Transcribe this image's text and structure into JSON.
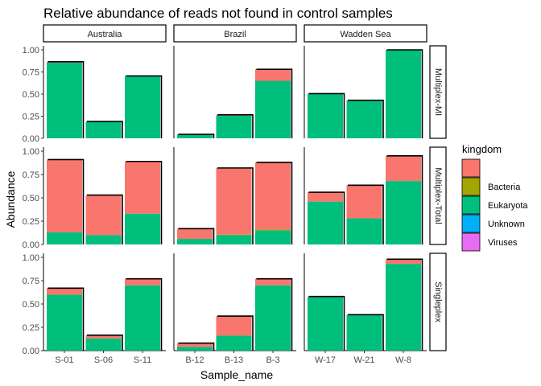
{
  "chart_data": {
    "type": "bar",
    "stacked": true,
    "title": "Relative abundance of reads not found in control samples",
    "xlabel": "Sample_name",
    "ylabel": "Abundance",
    "ylim": [
      0,
      1.0
    ],
    "yticks": [
      "0.00",
      "0.25",
      "0.50",
      "0.75",
      "1.00"
    ],
    "column_facets": [
      "Australia",
      "Brazil",
      "Wadden Sea"
    ],
    "row_facets": [
      "Multiplex-MI",
      "Multiplex-Total",
      "Singleplex"
    ],
    "categories": [
      [
        "S-01",
        "S-06",
        "S-11"
      ],
      [
        "B-12",
        "B-13",
        "B-3"
      ],
      [
        "W-17",
        "W-21",
        "W-8"
      ]
    ],
    "legend": {
      "title": "kingdom",
      "position": "right",
      "entries": [
        {
          "name": "",
          "color": "#F8766D"
        },
        {
          "name": "Bacteria",
          "color": "#A3A500"
        },
        {
          "name": "Eukaryota",
          "color": "#00BF7D"
        },
        {
          "name": "Unknown",
          "color": "#00B0F6"
        },
        {
          "name": "Viruses",
          "color": "#E76BF3"
        }
      ]
    },
    "grid": false,
    "panels": [
      {
        "row": "Multiplex-MI",
        "col": "Australia",
        "bars": [
          {
            "sample": "S-01",
            "eukaryota": 0.855,
            "blank": 0.01
          },
          {
            "sample": "S-06",
            "eukaryota": 0.19,
            "blank": 0.0
          },
          {
            "sample": "S-11",
            "eukaryota": 0.7,
            "blank": 0.005
          }
        ]
      },
      {
        "row": "Multiplex-MI",
        "col": "Brazil",
        "bars": [
          {
            "sample": "B-12",
            "eukaryota": 0.045,
            "blank": 0.0
          },
          {
            "sample": "B-13",
            "eukaryota": 0.255,
            "blank": 0.01
          },
          {
            "sample": "B-3",
            "eukaryota": 0.65,
            "blank": 0.13
          }
        ]
      },
      {
        "row": "Multiplex-MI",
        "col": "Wadden Sea",
        "bars": [
          {
            "sample": "W-17",
            "eukaryota": 0.505,
            "blank": 0.0
          },
          {
            "sample": "W-21",
            "eukaryota": 0.43,
            "blank": 0.0
          },
          {
            "sample": "W-8",
            "eukaryota": 1.0,
            "blank": 0.0
          }
        ]
      },
      {
        "row": "Multiplex-Total",
        "col": "Australia",
        "bars": [
          {
            "sample": "S-01",
            "eukaryota": 0.13,
            "blank": 0.78
          },
          {
            "sample": "S-06",
            "eukaryota": 0.1,
            "blank": 0.43
          },
          {
            "sample": "S-11",
            "eukaryota": 0.33,
            "blank": 0.56
          }
        ]
      },
      {
        "row": "Multiplex-Total",
        "col": "Brazil",
        "bars": [
          {
            "sample": "B-12",
            "eukaryota": 0.06,
            "blank": 0.11
          },
          {
            "sample": "B-13",
            "bacteria": 0.005,
            "eukaryota": 0.1,
            "blank": 0.715
          },
          {
            "sample": "B-3",
            "bacteria": 0.01,
            "eukaryota": 0.15,
            "blank": 0.72
          }
        ]
      },
      {
        "row": "Multiplex-Total",
        "col": "Wadden Sea",
        "bars": [
          {
            "sample": "W-17",
            "eukaryota": 0.46,
            "blank": 0.1
          },
          {
            "sample": "W-21",
            "eukaryota": 0.28,
            "blank": 0.355
          },
          {
            "sample": "W-8",
            "eukaryota": 0.68,
            "blank": 0.27
          }
        ]
      },
      {
        "row": "Singleplex",
        "col": "Australia",
        "bars": [
          {
            "sample": "S-01",
            "eukaryota": 0.6,
            "blank": 0.07
          },
          {
            "sample": "S-06",
            "eukaryota": 0.13,
            "blank": 0.035
          },
          {
            "sample": "S-11",
            "eukaryota": 0.7,
            "blank": 0.07
          }
        ]
      },
      {
        "row": "Singleplex",
        "col": "Brazil",
        "bars": [
          {
            "sample": "B-12",
            "eukaryota": 0.04,
            "blank": 0.04
          },
          {
            "sample": "B-13",
            "eukaryota": 0.16,
            "blank": 0.21
          },
          {
            "sample": "B-3",
            "eukaryota": 0.7,
            "blank": 0.07
          }
        ]
      },
      {
        "row": "Singleplex",
        "col": "Wadden Sea",
        "bars": [
          {
            "sample": "W-17",
            "eukaryota": 0.575,
            "blank": 0.005
          },
          {
            "sample": "W-21",
            "eukaryota": 0.38,
            "blank": 0.005
          },
          {
            "sample": "W-8",
            "eukaryota": 0.93,
            "blank": 0.05
          }
        ]
      }
    ]
  }
}
